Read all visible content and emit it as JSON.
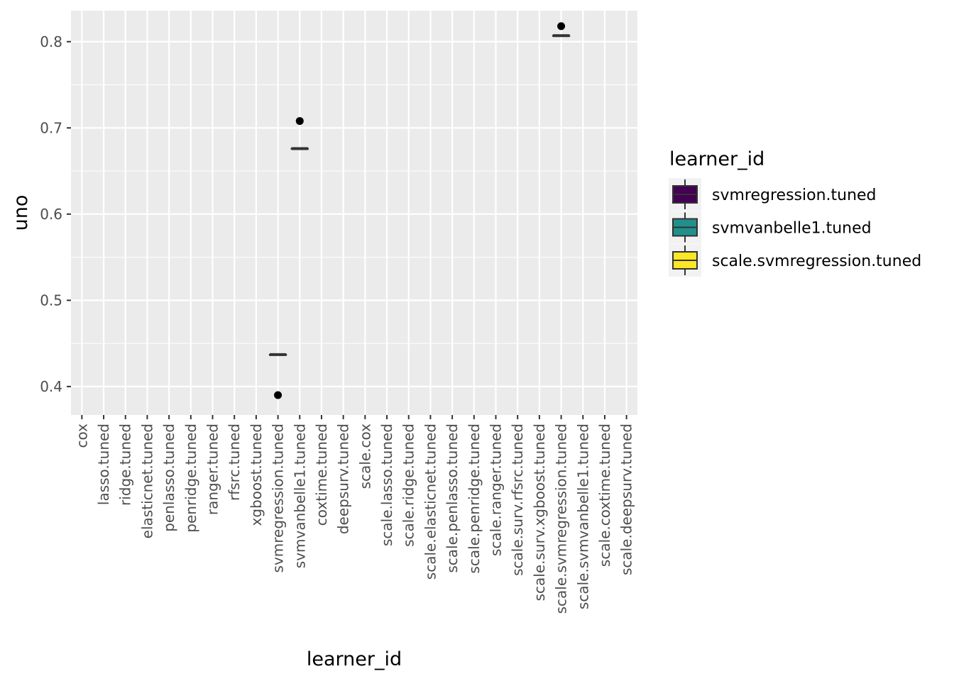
{
  "chart_data": {
    "type": "box",
    "xlabel": "learner_id",
    "ylabel": "uno",
    "ylim": [
      0.367,
      0.836
    ],
    "yticks": [
      0.4,
      0.5,
      0.6,
      0.7,
      0.8
    ],
    "ytick_labels": [
      "0.4",
      "0.5",
      "0.6",
      "0.7",
      "0.8"
    ],
    "grid": true,
    "legend_position": "right",
    "categories": [
      "cox",
      "lasso.tuned",
      "ridge.tuned",
      "elasticnet.tuned",
      "penlasso.tuned",
      "penridge.tuned",
      "ranger.tuned",
      "rfsrc.tuned",
      "xgboost.tuned",
      "svmregression.tuned",
      "svmvanbelle1.tuned",
      "coxtime.tuned",
      "deepsurv.tuned",
      "scale.cox",
      "scale.lasso.tuned",
      "scale.ridge.tuned",
      "scale.elasticnet.tuned",
      "scale.penlasso.tuned",
      "scale.penridge.tuned",
      "scale.ranger.tuned",
      "scale.surv.rfsrc.tuned",
      "scale.surv.xgboost.tuned",
      "scale.svmregression.tuned",
      "scale.svmvanbelle1.tuned",
      "scale.coxtime.tuned",
      "scale.deepsurv.tuned"
    ],
    "legend_title": "learner_id",
    "series": [
      {
        "name": "svmregression.tuned",
        "category": "svmregression.tuned",
        "color": "#440154",
        "median": 0.437,
        "q1": 0.437,
        "q3": 0.437,
        "whisker_low": 0.437,
        "whisker_high": 0.437,
        "outliers": [
          0.39
        ]
      },
      {
        "name": "svmvanbelle1.tuned",
        "category": "svmvanbelle1.tuned",
        "color": "#21908C",
        "median": 0.676,
        "q1": 0.676,
        "q3": 0.676,
        "whisker_low": 0.676,
        "whisker_high": 0.676,
        "outliers": [
          0.708
        ]
      },
      {
        "name": "scale.svmregression.tuned",
        "category": "scale.svmregression.tuned",
        "color": "#FDE725",
        "median": 0.807,
        "q1": 0.807,
        "q3": 0.807,
        "whisker_low": 0.807,
        "whisker_high": 0.807,
        "outliers": [
          0.818
        ]
      }
    ]
  }
}
